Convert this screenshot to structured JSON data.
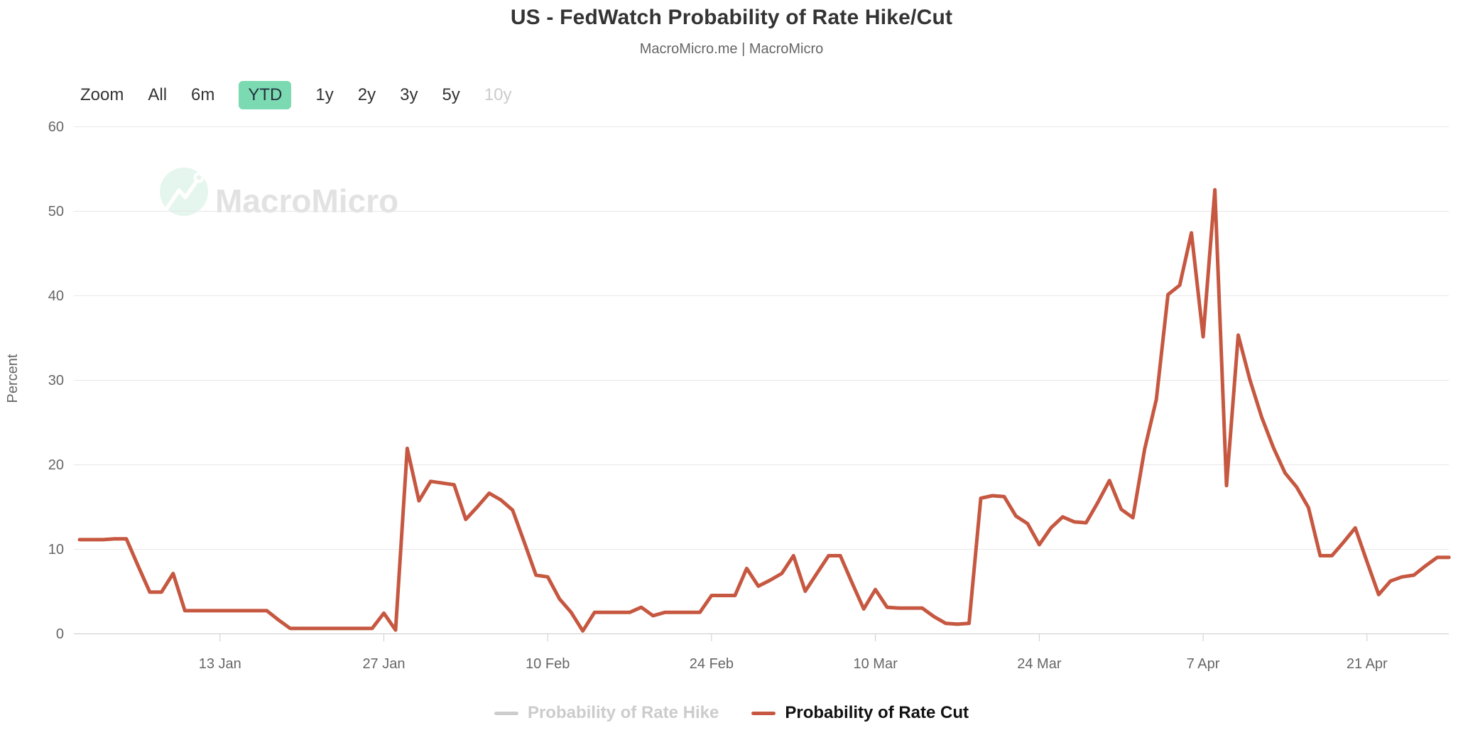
{
  "header": {
    "title": "US - FedWatch Probability of Rate Hike/Cut",
    "subtitle": "MacroMicro.me | MacroMicro"
  },
  "toolbar": {
    "zoom_label": "Zoom",
    "buttons": [
      {
        "label": "All",
        "active": false,
        "disabled": false
      },
      {
        "label": "6m",
        "active": false,
        "disabled": false
      },
      {
        "label": "YTD",
        "active": true,
        "disabled": false
      },
      {
        "label": "1y",
        "active": false,
        "disabled": false
      },
      {
        "label": "2y",
        "active": false,
        "disabled": false
      },
      {
        "label": "3y",
        "active": false,
        "disabled": false
      },
      {
        "label": "5y",
        "active": false,
        "disabled": false
      },
      {
        "label": "10y",
        "active": false,
        "disabled": true
      }
    ]
  },
  "watermark": {
    "brand": "MacroMicro"
  },
  "y_axis": {
    "title": "Percent"
  },
  "legend": [
    {
      "label": "Probability of Rate Hike",
      "color": "#cccccc",
      "disabled": true
    },
    {
      "label": "Probability of Rate Cut",
      "color": "#c65740",
      "disabled": false
    }
  ],
  "colors": {
    "rate_cut_line": "#c65740",
    "disabled_series": "#cccccc",
    "active_range_button_bg": "#7bdab1",
    "gridline": "#e7e7e7",
    "axis_line": "#cccccc",
    "axis_label": "#666666",
    "title_text": "#333333",
    "watermark_circle": "#e4f6ee",
    "watermark_text": "#e2e2e2"
  },
  "chart_data": {
    "type": "line",
    "title": "US - FedWatch Probability of Rate Hike/Cut",
    "subtitle": "MacroMicro.me | MacroMicro",
    "xlabel": "",
    "ylabel": "Percent",
    "ylim": [
      0,
      60
    ],
    "y_ticks": [
      0,
      10,
      20,
      30,
      40,
      50,
      60
    ],
    "grid": "horizontal",
    "legend_position": "bottom",
    "x_ticks": [
      {
        "label": "13 Jan",
        "day_index": 12
      },
      {
        "label": "27 Jan",
        "day_index": 26
      },
      {
        "label": "10 Feb",
        "day_index": 40
      },
      {
        "label": "24 Feb",
        "day_index": 54
      },
      {
        "label": "10 Mar",
        "day_index": 68
      },
      {
        "label": "24 Mar",
        "day_index": 82
      },
      {
        "label": "7 Apr",
        "day_index": 96
      },
      {
        "label": "21 Apr",
        "day_index": 110
      }
    ],
    "series": [
      {
        "name": "Probability of Rate Hike",
        "visible": false,
        "color": "#cccccc"
      },
      {
        "name": "Probability of Rate Cut",
        "visible": true,
        "color": "#c65740",
        "start_date": "2025-01-01",
        "interval_days": 1,
        "values": [
          11.1,
          11.1,
          11.1,
          11.2,
          11.2,
          8.0,
          4.9,
          4.9,
          7.1,
          2.7,
          2.7,
          2.7,
          2.7,
          2.7,
          2.7,
          2.7,
          2.7,
          1.6,
          0.6,
          0.6,
          0.6,
          0.6,
          0.6,
          0.6,
          0.6,
          0.6,
          2.4,
          0.4,
          21.9,
          15.7,
          18.0,
          17.8,
          17.6,
          13.5,
          15.0,
          16.6,
          15.8,
          14.6,
          10.8,
          6.9,
          6.7,
          4.1,
          2.5,
          0.3,
          2.5,
          2.5,
          2.5,
          2.5,
          3.1,
          2.1,
          2.5,
          2.5,
          2.5,
          2.5,
          4.5,
          4.5,
          4.5,
          7.7,
          5.6,
          6.3,
          7.1,
          9.2,
          5.0,
          7.1,
          9.2,
          9.2,
          6.0,
          2.9,
          5.2,
          3.1,
          3.0,
          3.0,
          3.0,
          2.0,
          1.2,
          1.1,
          1.2,
          16.0,
          16.3,
          16.2,
          13.9,
          13.0,
          10.5,
          12.5,
          13.8,
          13.2,
          13.1,
          15.5,
          18.1,
          14.7,
          13.7,
          21.8,
          27.7,
          40.1,
          41.2,
          47.4,
          35.1,
          52.5,
          17.5,
          35.3,
          30.0,
          25.6,
          22.0,
          19.0,
          17.3,
          14.9,
          9.2,
          9.2,
          10.8,
          12.5,
          8.5,
          4.6,
          6.2,
          6.7,
          6.9,
          8.0,
          9.0,
          9.0
        ]
      }
    ]
  }
}
